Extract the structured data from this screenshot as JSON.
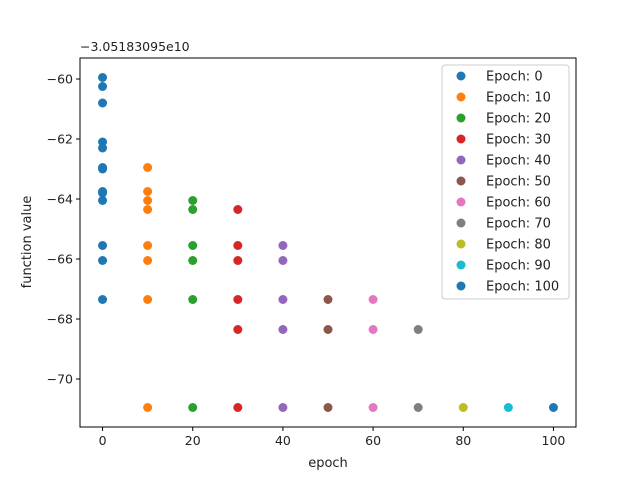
{
  "chart_data": {
    "type": "scatter",
    "xlabel": "epoch",
    "ylabel": "function value",
    "offset_text": "−3.05183095e10",
    "xlim": [
      -5,
      105
    ],
    "ylim": [
      -71.6,
      -59.3
    ],
    "xticks": [
      0,
      20,
      40,
      60,
      80,
      100
    ],
    "yticks": [
      -70,
      -68,
      -66,
      -64,
      -62,
      -60
    ],
    "xtick_labels": [
      "0",
      "20",
      "40",
      "60",
      "80",
      "100"
    ],
    "ytick_labels": [
      "−70",
      "−68",
      "−66",
      "−64",
      "−62",
      "−60"
    ],
    "legend_position": "upper right",
    "series": [
      {
        "name": "Epoch: 0",
        "color": "#1f77b4",
        "x": 0,
        "y": [
          -59.95,
          -60.25,
          -60.8,
          -62.1,
          -62.3,
          -62.95,
          -63.0,
          -63.75,
          -63.8,
          -64.05,
          -65.55,
          -66.05,
          -67.35
        ]
      },
      {
        "name": "Epoch: 10",
        "color": "#ff7f0e",
        "x": 10,
        "y": [
          -62.95,
          -63.75,
          -64.05,
          -64.35,
          -65.55,
          -66.05,
          -67.35,
          -70.95
        ]
      },
      {
        "name": "Epoch: 20",
        "color": "#2ca02c",
        "x": 20,
        "y": [
          -64.05,
          -64.35,
          -65.55,
          -66.05,
          -67.35,
          -70.95
        ]
      },
      {
        "name": "Epoch: 30",
        "color": "#d62728",
        "x": 30,
        "y": [
          -64.35,
          -65.55,
          -66.05,
          -67.35,
          -68.35,
          -70.95
        ]
      },
      {
        "name": "Epoch: 40",
        "color": "#9467bd",
        "x": 40,
        "y": [
          -65.55,
          -66.05,
          -67.35,
          -68.35,
          -70.95
        ]
      },
      {
        "name": "Epoch: 50",
        "color": "#8c564b",
        "x": 50,
        "y": [
          -67.35,
          -68.35,
          -70.95
        ]
      },
      {
        "name": "Epoch: 60",
        "color": "#e377c2",
        "x": 60,
        "y": [
          -67.35,
          -68.35,
          -70.95
        ]
      },
      {
        "name": "Epoch: 70",
        "color": "#7f7f7f",
        "x": 70,
        "y": [
          -68.35,
          -70.95
        ]
      },
      {
        "name": "Epoch: 80",
        "color": "#bcbd22",
        "x": 80,
        "y": [
          -70.95
        ]
      },
      {
        "name": "Epoch: 90",
        "color": "#17becf",
        "x": 90,
        "y": [
          -70.95
        ]
      },
      {
        "name": "Epoch: 100",
        "color": "#1f77b4",
        "x": 100,
        "y": [
          -70.95
        ]
      }
    ]
  }
}
